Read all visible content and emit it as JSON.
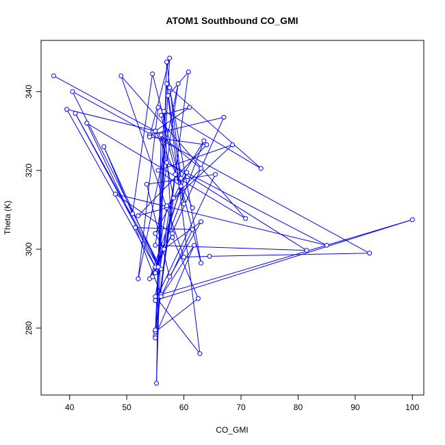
{
  "chart_data": {
    "type": "line",
    "title": "ATOM1 Southbound CO_GMI",
    "xlabel": "CO_GMI",
    "ylabel": "Theta (K)",
    "xlim": [
      35,
      102
    ],
    "ylim": [
      263,
      353
    ],
    "x_ticks": [
      40,
      50,
      60,
      70,
      80,
      90,
      100
    ],
    "y_ticks": [
      280,
      300,
      320,
      340
    ],
    "grid": false,
    "legend": "none",
    "line_color": "#0000FF",
    "marker": "open-circle",
    "series": [
      {
        "x": [
          37.2,
          55.0,
          39.5,
          55.0,
          43.0,
          70.8,
          49.0,
          60.0,
          64.5,
          92.5,
          40.5,
          56.0,
          41.0,
          55.5,
          46.0,
          51.0,
          54.5,
          63.0,
          57.5,
          73.5,
          55.5,
          52.0,
          59.0,
          55.0,
          81.5,
          57.0,
          85.0,
          48.0,
          58.0,
          54.0,
          60.5,
          55.0,
          56.5,
          63.0,
          57.5,
          53.5,
          65.5,
          55.0,
          100.0,
          56.0,
          51.5,
          61.5,
          56.0,
          61.8,
          55.0,
          56.5,
          58.0,
          62.5,
          55.0,
          57.0,
          60.0,
          56.0,
          61.0,
          54.0,
          67.0,
          54.5,
          63.5,
          59.5,
          57.0,
          55.2,
          56.0,
          58.2,
          55.0,
          60.8,
          57.2,
          62.8,
          55.0,
          58.5,
          55.0,
          57.5,
          54.0,
          64.0,
          52.0,
          57.0,
          55.0,
          59.5,
          55.5,
          68.5,
          57.0,
          63.0,
          55.0,
          61.5
        ],
        "y": [
          344.0,
          330.0,
          335.5,
          295.5,
          332.0,
          307.8,
          344.0,
          298.0,
          298.2,
          299.0,
          340.0,
          295.0,
          334.5,
          295.5,
          326.0,
          309.0,
          344.5,
          296.5,
          341.0,
          320.5,
          336.0,
          292.5,
          342.0,
          301.0,
          299.7,
          322.0,
          301.0,
          314.0,
          304.0,
          292.5,
          319.5,
          304.0,
          300.0,
          307.0,
          293.0,
          316.5,
          319.0,
          287.0,
          307.5,
          288.5,
          305.5,
          305.0,
          288.0,
          301.0,
          278.0,
          335.0,
          303.0,
          287.5,
          279.0,
          342.0,
          311.5,
          334.0,
          336.0,
          329.0,
          333.5,
          293.0,
          327.5,
          318.0,
          347.5,
          266.0,
          329.0,
          313.0,
          279.5,
          345.0,
          339.0,
          273.5,
          288.0,
          319.0,
          277.5,
          348.5,
          328.5,
          326.5,
          308.5,
          310.5,
          294.0,
          316.0,
          320.0,
          326.5,
          311.0,
          320.5,
          330.0,
          310.5
        ]
      }
    ]
  }
}
